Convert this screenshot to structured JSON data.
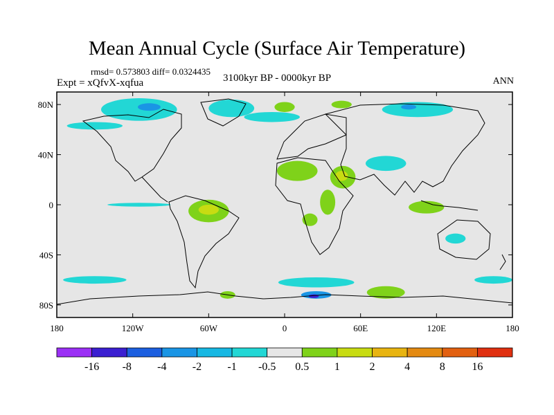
{
  "chart_data": {
    "type": "heatmap",
    "title": "Mean Annual Cycle (Surface Air Temperature)",
    "stats": "rmsd= 0.573803 diff= 0.0324435",
    "experiment": "Expt = xQfvX-xqfua",
    "period": "3100kyr BP - 0000kyr BP",
    "season": "ANN",
    "x_axis": {
      "range": [
        -180,
        180
      ],
      "ticks": [
        {
          "value": -180,
          "label": "180"
        },
        {
          "value": -120,
          "label": "120W"
        },
        {
          "value": -60,
          "label": "60W"
        },
        {
          "value": 0,
          "label": "0"
        },
        {
          "value": 60,
          "label": "60E"
        },
        {
          "value": 120,
          "label": "120E"
        },
        {
          "value": 180,
          "label": "180"
        }
      ]
    },
    "y_axis": {
      "range": [
        -90,
        90
      ],
      "ticks": [
        {
          "value": 80,
          "label": "80N"
        },
        {
          "value": 40,
          "label": "40N"
        },
        {
          "value": 0,
          "label": "0"
        },
        {
          "value": -40,
          "label": "40S"
        },
        {
          "value": -80,
          "label": "80S"
        }
      ]
    },
    "colorbar": {
      "labels": [
        "-16",
        "-8",
        "-4",
        "-2",
        "-1",
        "-0.5",
        "0.5",
        "1",
        "2",
        "4",
        "8",
        "16"
      ],
      "colors": [
        "#9b30f5",
        "#3b1fd1",
        "#1c5fe0",
        "#1a95e5",
        "#17b8e3",
        "#22d7d5",
        "#e6e6e6",
        "#7fd21a",
        "#c8dc12",
        "#e8b410",
        "#e48a12",
        "#e26010",
        "#e03010"
      ]
    },
    "regions": [
      {
        "name": "arctic-canada",
        "color": "#22d7d5",
        "lon": -115,
        "lat": 76,
        "rlon": 30,
        "rlat": 9
      },
      {
        "name": "arctic-canada-core",
        "color": "#1a95e5",
        "lon": -107,
        "lat": 78,
        "rlon": 9,
        "rlat": 3
      },
      {
        "name": "greenland",
        "color": "#22d7d5",
        "lon": -42,
        "lat": 77,
        "rlon": 18,
        "rlat": 7
      },
      {
        "name": "north-atlantic",
        "color": "#22d7d5",
        "lon": -10,
        "lat": 70,
        "rlon": 22,
        "rlat": 4
      },
      {
        "name": "siberia-arctic",
        "color": "#22d7d5",
        "lon": 105,
        "lat": 76,
        "rlon": 28,
        "rlat": 6
      },
      {
        "name": "siberia-arctic-core",
        "color": "#1a95e5",
        "lon": 98,
        "lat": 78,
        "rlon": 6,
        "rlat": 2
      },
      {
        "name": "north-pacific",
        "color": "#22d7d5",
        "lon": -150,
        "lat": 63,
        "rlon": 22,
        "rlat": 3
      },
      {
        "name": "arctic-warm",
        "color": "#7fd21a",
        "lon": 0,
        "lat": 78,
        "rlon": 8,
        "rlat": 4
      },
      {
        "name": "arctic-warm-2",
        "color": "#7fd21a",
        "lon": 45,
        "lat": 80,
        "rlon": 8,
        "rlat": 3
      },
      {
        "name": "central-asia",
        "color": "#22d7d5",
        "lon": 80,
        "lat": 33,
        "rlon": 16,
        "rlat": 6
      },
      {
        "name": "north-africa",
        "color": "#7fd21a",
        "lon": 10,
        "lat": 27,
        "rlon": 16,
        "rlat": 8
      },
      {
        "name": "arabia",
        "color": "#7fd21a",
        "lon": 46,
        "lat": 22,
        "rlon": 10,
        "rlat": 9
      },
      {
        "name": "arabia-core",
        "color": "#c8dc12",
        "lon": 45,
        "lat": 23,
        "rlon": 5,
        "rlat": 4
      },
      {
        "name": "east-africa",
        "color": "#7fd21a",
        "lon": 34,
        "lat": 2,
        "rlon": 6,
        "rlat": 10
      },
      {
        "name": "southern-africa",
        "color": "#7fd21a",
        "lon": 20,
        "lat": -12,
        "rlon": 6,
        "rlat": 5
      },
      {
        "name": "amazon",
        "color": "#7fd21a",
        "lon": -60,
        "lat": -5,
        "rlon": 16,
        "rlat": 9
      },
      {
        "name": "amazon-core",
        "color": "#c8dc12",
        "lon": -60,
        "lat": -4,
        "rlon": 8,
        "rlat": 4
      },
      {
        "name": "east-pacific",
        "color": "#22d7d5",
        "lon": -115,
        "lat": 0,
        "rlon": 25,
        "rlat": 1.5
      },
      {
        "name": "indonesia",
        "color": "#7fd21a",
        "lon": 112,
        "lat": -2,
        "rlon": 14,
        "rlat": 5
      },
      {
        "name": "australia",
        "color": "#22d7d5",
        "lon": 135,
        "lat": -27,
        "rlon": 8,
        "rlat": 4
      },
      {
        "name": "southern-ocean-west",
        "color": "#22d7d5",
        "lon": -150,
        "lat": -60,
        "rlon": 25,
        "rlat": 3
      },
      {
        "name": "southern-ocean-atlantic",
        "color": "#22d7d5",
        "lon": 25,
        "lat": -62,
        "rlon": 30,
        "rlat": 4
      },
      {
        "name": "antarctic-atlantic-cold",
        "color": "#1a95e5",
        "lon": 25,
        "lat": -72,
        "rlon": 12,
        "rlat": 3
      },
      {
        "name": "antarctic-atlantic-core",
        "color": "#3b1fd1",
        "lon": 23,
        "lat": -73,
        "rlon": 4,
        "rlat": 1.5
      },
      {
        "name": "antarctic-warm",
        "color": "#7fd21a",
        "lon": 80,
        "lat": -70,
        "rlon": 15,
        "rlat": 5
      },
      {
        "name": "antarctic-warm-2",
        "color": "#7fd21a",
        "lon": -45,
        "lat": -72,
        "rlon": 6,
        "rlat": 3
      },
      {
        "name": "southern-ocean-east",
        "color": "#22d7d5",
        "lon": 165,
        "lat": -60,
        "rlon": 15,
        "rlat": 3
      }
    ]
  }
}
